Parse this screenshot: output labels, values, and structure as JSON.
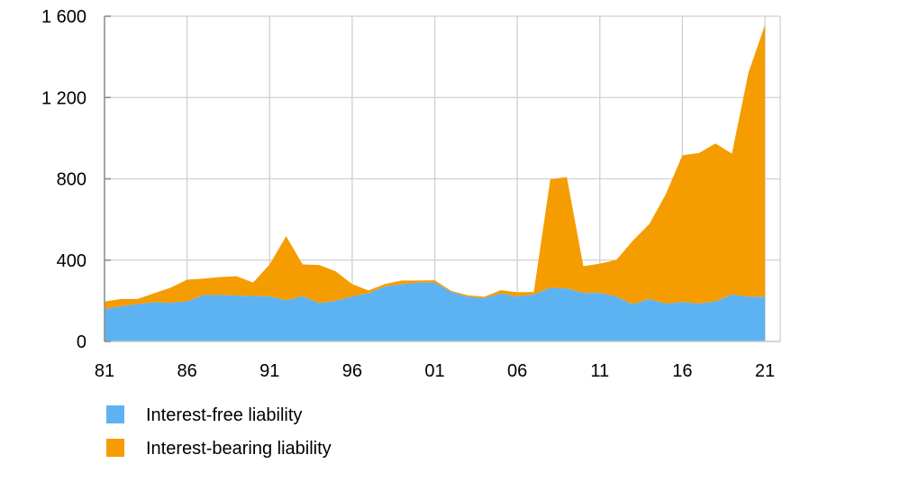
{
  "chart_data": {
    "type": "area",
    "stacked": true,
    "title": "",
    "xlabel": "",
    "ylabel": "",
    "x": [
      1981,
      1982,
      1983,
      1984,
      1985,
      1986,
      1987,
      1988,
      1989,
      1990,
      1991,
      1992,
      1993,
      1994,
      1995,
      1996,
      1997,
      1998,
      1999,
      2000,
      2001,
      2002,
      2003,
      2004,
      2005,
      2006,
      2007,
      2008,
      2009,
      2010,
      2011,
      2012,
      2013,
      2014,
      2015,
      2016,
      2017,
      2018,
      2019,
      2020,
      2021
    ],
    "xticks": [
      1981,
      1986,
      1991,
      1996,
      2001,
      2006,
      2011,
      2016,
      2021
    ],
    "xtick_labels": [
      "81",
      "86",
      "91",
      "96",
      "01",
      "06",
      "11",
      "16",
      "21"
    ],
    "ylim": [
      0,
      1600
    ],
    "yticks": [
      0,
      400,
      800,
      1200,
      1600
    ],
    "ytick_labels": [
      "0",
      "400",
      "800",
      "1 200",
      "1 600"
    ],
    "grid": true,
    "legend_position": "bottom-left",
    "series": [
      {
        "name": "Interest-free liability",
        "color": "#5db3f2",
        "values": [
          158,
          174,
          184,
          193,
          190,
          198,
          228,
          229,
          226,
          224,
          222,
          202,
          223,
          189,
          200,
          222,
          237,
          271,
          282,
          290,
          290,
          244,
          220,
          214,
          236,
          221,
          231,
          264,
          261,
          239,
          239,
          221,
          183,
          209,
          186,
          194,
          186,
          197,
          231,
          220,
          220
        ]
      },
      {
        "name": "Interest-bearing liability",
        "color": "#f59c00",
        "values": [
          38,
          35,
          25,
          44,
          74,
          106,
          81,
          88,
          95,
          66,
          157,
          316,
          156,
          187,
          145,
          60,
          14,
          12,
          18,
          10,
          11,
          5,
          7,
          6,
          16,
          21,
          12,
          534,
          548,
          131,
          144,
          180,
          313,
          369,
          539,
          722,
          741,
          777,
          693,
          1102,
          1337
        ]
      }
    ]
  }
}
